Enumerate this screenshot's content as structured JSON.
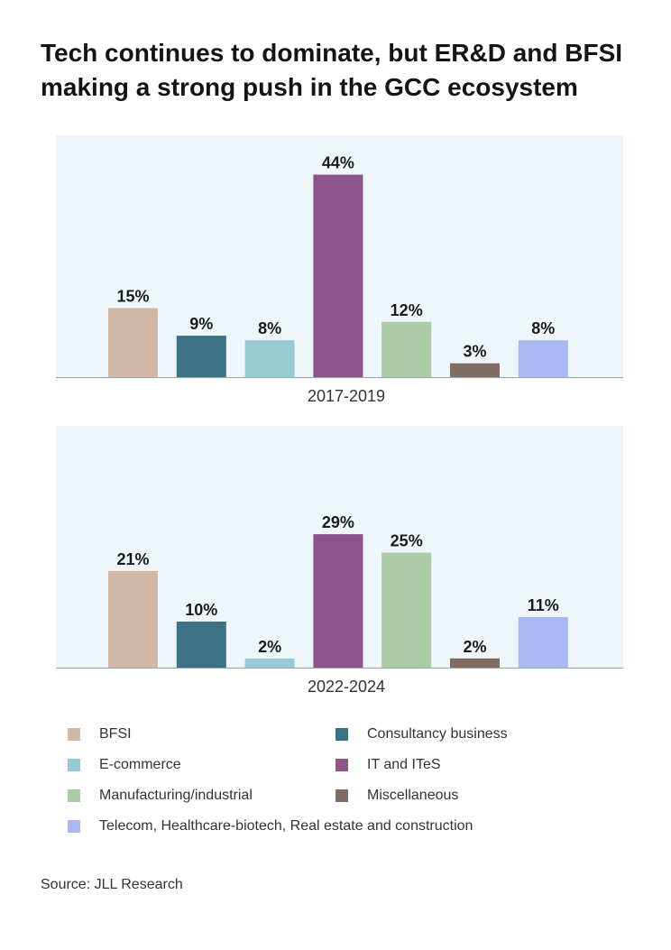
{
  "title": "Tech continues to dominate, but ER&D and BFSI making a strong push in the GCC ecosystem",
  "source": "Source: JLL Research",
  "colors": {
    "BFSI": "#d4b8a6",
    "Consultancy business": "#3b7385",
    "E-commerce": "#98cad6",
    "IT and ITeS": "#8c548a",
    "Manufacturing/industrial": "#a9cca4",
    "Miscellaneous": "#7f6d64",
    "Telecom, Healthcare-biotech, Real estate and construction": "#a9b8f0"
  },
  "legend": [
    "BFSI",
    "Consultancy business",
    "E-commerce",
    "IT and ITeS",
    "Manufacturing/industrial",
    "Miscellaneous",
    "Telecom, Healthcare-biotech, Real estate and construction"
  ],
  "chart_data": [
    {
      "type": "bar",
      "xlabel": "2017-2019",
      "categories": [
        "BFSI",
        "Consultancy business",
        "E-commerce",
        "IT and ITeS",
        "Manufacturing/industrial",
        "Miscellaneous",
        "Telecom, Healthcare-biotech, Real estate and construction"
      ],
      "values": [
        15,
        9,
        8,
        44,
        12,
        3,
        8
      ],
      "data_labels": [
        "15%",
        "9%",
        "8%",
        "44%",
        "12%",
        "3%",
        "8%"
      ],
      "ylim": [
        0,
        50
      ],
      "grid": false,
      "legend_placement": "bottom"
    },
    {
      "type": "bar",
      "xlabel": "2022-2024",
      "categories": [
        "BFSI",
        "Consultancy business",
        "E-commerce",
        "IT and ITeS",
        "Manufacturing/industrial",
        "Miscellaneous",
        "Telecom, Healthcare-biotech, Real estate and construction"
      ],
      "values": [
        21,
        10,
        2,
        29,
        25,
        2,
        11
      ],
      "data_labels": [
        "21%",
        "10%",
        "2%",
        "29%",
        "25%",
        "2%",
        "11%"
      ],
      "ylim": [
        0,
        50
      ],
      "grid": false,
      "legend_placement": "bottom"
    }
  ]
}
